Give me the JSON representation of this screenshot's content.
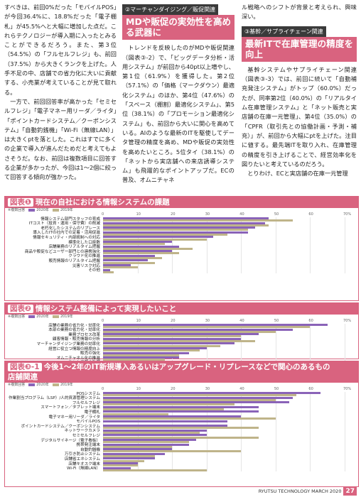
{
  "col1": {
    "p1": "すべきは、前回0%だった「モバイルPOS」が今回36.4%に、18.8%だった「電子棚札」が45.5%へと大幅に増加した点だ。これらテクノロジーが導入期に入ったとみることができるだろう。また、第3位（54.5%）の「フルセルフレジ」も、前回（37.5%）から大きくランクを上げた。人手不足の中、店舗での省力化に大いに貢献する、小売業が考えていることが見て取れる。",
    "p2": "一方で、前回回答率が高かった「セミセルフレジ」「電子マネー用リーダ／ライタ」「ポイントカードシステム／クーポンシステム」「自動釣銭機」「Wi-Fi（無線LAN）」は大きくptを落とした。これはすでに多くの企業で導入が進んだためだと考えてもよさそうだ。なお、前回は複数項目に回答する企業が多かったが、今回は1〜2個に絞って回答する傾向が強かった。"
  },
  "col2": {
    "sub": "②マーチャンダイジング／販促関連",
    "head": "MDや販促の実効性を高める武器に",
    "p1": "トレンドを反映したのがMDや販促関連（図表③-2）で、「ビッグデータ分析・活用システム」が前回から40pt以上増やし、第1位（61.9%）を獲得した。第2位（57.1%）の「価格（マークダウン）最適化システム」のほか、第4位（47.6%）の「スペース（棚割）最適化システム」、第5位（38.1%）の「プロモーション最適化システム」も、前回から大いに関心を高めている。AIのような最新のITを駆使してデータ管理の精度を高め、MDや販促の実効性を高めたいところ。5位タイ（38.1%）の「ネットから実店舗への来店誘導システム」も飛躍的なポイントアップだ。ECの普及、オムニチャネ"
  },
  "col3": {
    "p0": "ル戦略へのシフトが背景と考えられ、興味深い。",
    "sub": "③基幹／サプライチェーン関連",
    "head": "最新ITで在庫管理の精度を向上",
    "p1": "基幹システムやサプライチェーン関連（図表③-3）では、前回に続いて「自動補充発注システム」がトップ（60.0%）だったが、同率第2位（40.0%）の「リアルタイム在庫管理システム」と「ネット販売と実店舗の在庫一元管理」、第4位（35.0%）の「CPFR（取引先との協働計画・予測・補充）」が、前回から大幅にptを上げた。注目に値する。最先端ITを取り入れ、在庫管理の精度を引き上げることで、経営効率化を図りたいと考えているのだろう。",
    "p2": "とりわけ、ECと実店舗の在庫一元管理"
  },
  "legend": {
    "y2020": "2020年",
    "y2019": "2019年",
    "unit": "%",
    "note": "※複数回答"
  },
  "colors": {
    "accent": "#d9637f",
    "series2020": "#8a63b8",
    "series2019": "#bfb48a"
  },
  "ticks": [
    "0",
    "10",
    "20",
    "30",
    "40",
    "50",
    "60",
    "70"
  ],
  "chart_data": [
    {
      "type": "bar",
      "tag": "図表❶",
      "title": "現在の自社における情報システムの課題",
      "xlim": [
        0,
        70
      ],
      "categories": [
        "情報システム部門スタッフの育成",
        "ITコスト（投資・運用・保守費）の削減",
        "老朽化したシステムのリプレース",
        "導入したITの社内での定着・活用促進",
        "情報セキュリティ・内部統制への対応",
        "標準化した口座数",
        "店舗業務のリアルタイム把握",
        "商品や販促などユーザー部門との連携強化",
        "クラウド化の推進",
        "販売情報のリアルタイム把握",
        "災害リスク対応",
        "その他"
      ],
      "series": [
        {
          "name": "2020年",
          "values": [
            48,
            47,
            44,
            42,
            32,
            20,
            22,
            20,
            15,
            13,
            8,
            2
          ]
        },
        {
          "name": "2019年",
          "values": [
            55,
            48,
            42,
            36,
            30,
            18,
            26,
            22,
            17,
            15,
            10,
            3
          ]
        }
      ]
    },
    {
      "type": "bar",
      "tag": "図表❷",
      "title": "情報システム整備によって実現したいこと",
      "xlim": [
        0,
        70
      ],
      "categories": [
        "店舗の業務の省力化・効率化",
        "本部の業務の省力化・効率化",
        "業務プロセス改革",
        "顧客情報・販売情報の分析",
        "マーチャンダイジング業務の効率化",
        "経営に役立つ情報の精度向上",
        "販売の強化",
        "オムニチャネル化の推進",
        "仕入れ業務の改革"
      ],
      "series": [
        {
          "name": "2020年",
          "values": [
            65,
            55,
            45,
            40,
            38,
            30,
            25,
            22,
            15
          ]
        },
        {
          "name": "2019年",
          "values": [
            60,
            50,
            40,
            44,
            34,
            28,
            22,
            18,
            12
          ]
        }
      ]
    },
    {
      "type": "bar",
      "tag": "図表❸-1",
      "title": "今後1〜2年のIT新規導入あるいはアップグレード・リプレースなどで関心のあるもの",
      "subtitle": "店舗関連",
      "xlim": [
        0,
        70
      ],
      "categories": [
        "POSシステム",
        "作業割当プログラム（LSP）/人的資源管理システム",
        "フルセルフレジ",
        "スマートフォン／タブレット端末",
        "電子棚札",
        "電子マネー用リーダ／ライタ",
        "モバイルPOS",
        "ポイントカードシステム／クーポンシステム",
        "ネットワークカメラ",
        "セミセルフレジ",
        "デジタルサイネージ（電子看板）",
        "携帯発注端末",
        "自動釣銭機",
        "万引き防止システム",
        "店舗省エネシステム",
        "店舗キオスク端末",
        "Wi-Fi（無線LAN）"
      ],
      "series": [
        {
          "name": "2020年",
          "values": [
            63,
            55,
            54,
            45,
            45,
            40,
            36,
            36,
            30,
            30,
            27,
            25,
            20,
            18,
            15,
            10,
            8
          ]
        },
        {
          "name": "2019年",
          "values": [
            56,
            50,
            38,
            35,
            19,
            50,
            0,
            45,
            28,
            45,
            25,
            20,
            40,
            15,
            12,
            10,
            30
          ]
        }
      ]
    }
  ],
  "footer": {
    "mag": "RYUTSU TECHNOLOGY MARCH 2020",
    "page": "27"
  }
}
